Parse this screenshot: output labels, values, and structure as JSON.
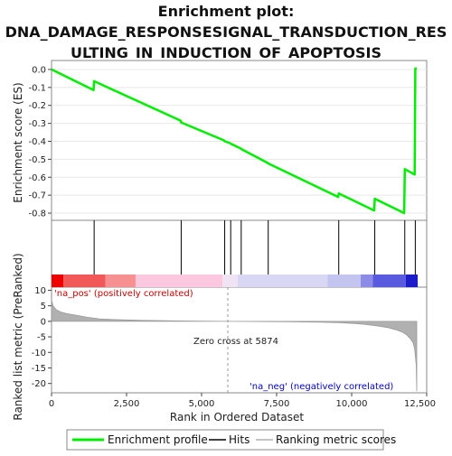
{
  "chart_data": {
    "type": "line",
    "title_lines": [
      "Enrichment plot:",
      "DNA_DAMAGE_RESPONSESIGNAL_TRANSDUCTION_RES",
      "ULTING_IN_INDUCTION_OF_APOPTOSIS"
    ],
    "top_panel": {
      "ylabel": "Enrichment score (ES)",
      "ylim": [
        -0.84,
        0.05
      ],
      "yticks": [
        0.0,
        -0.1,
        -0.2,
        -0.3,
        -0.4,
        -0.5,
        -0.6,
        -0.7,
        -0.8
      ],
      "ytick_labels": [
        "0.0",
        "-0.1",
        "-0.2",
        "-0.3",
        "-0.4",
        "-0.5",
        "-0.6",
        "-0.7",
        "-0.8"
      ],
      "line_color": "#00ee00",
      "series": [
        {
          "name": "Enrichment profile",
          "x": [
            0,
            1400,
            1420,
            4300,
            4320,
            5750,
            5770,
            5950,
            5970,
            6300,
            6320,
            7200,
            7220,
            9550,
            9570,
            10750,
            10770,
            11750,
            11770,
            12100,
            12120,
            12170
          ],
          "y": [
            0.0,
            -0.115,
            -0.065,
            -0.285,
            -0.295,
            -0.395,
            -0.4,
            -0.41,
            -0.413,
            -0.44,
            -0.443,
            -0.52,
            -0.523,
            -0.71,
            -0.69,
            -0.785,
            -0.72,
            -0.8,
            -0.555,
            -0.585,
            0.005,
            0.005
          ]
        }
      ]
    },
    "hits": {
      "color": "#000000",
      "x": [
        1420,
        4320,
        5770,
        5970,
        6320,
        7220,
        9570,
        10770,
        11770,
        12120
      ]
    },
    "heat_bar": {
      "segments": [
        {
          "x0": 0,
          "x1": 400,
          "color": "#ee0000"
        },
        {
          "x0": 400,
          "x1": 1800,
          "color": "#f25858"
        },
        {
          "x0": 1800,
          "x1": 2800,
          "color": "#f79090"
        },
        {
          "x0": 2800,
          "x1": 5700,
          "color": "#fbc8e0"
        },
        {
          "x0": 5700,
          "x1": 6200,
          "color": "#f0e4f4"
        },
        {
          "x0": 6200,
          "x1": 9200,
          "color": "#d8d8f4"
        },
        {
          "x0": 9200,
          "x1": 10300,
          "color": "#c4c4f0"
        },
        {
          "x0": 10300,
          "x1": 10700,
          "color": "#8c8ce8"
        },
        {
          "x0": 10700,
          "x1": 11800,
          "color": "#5a5ae0"
        },
        {
          "x0": 11800,
          "x1": 12200,
          "color": "#1c1cc8"
        }
      ]
    },
    "bottom_panel": {
      "ylabel": "Ranked list metric (PreRanked)",
      "ylim": [
        -23,
        11
      ],
      "yticks": [
        10,
        5,
        0,
        -5,
        -10,
        -15,
        -20
      ],
      "ytick_labels": [
        "10",
        "5",
        "0",
        "-5",
        "-10",
        "-15",
        "-20"
      ],
      "fill_color": "#b0b0b0",
      "series": [
        {
          "name": "Ranking metric scores",
          "x": [
            0,
            50,
            150,
            300,
            500,
            800,
            1200,
            1600,
            2000,
            3000,
            4000,
            5000,
            5874,
            7000,
            8000,
            9000,
            9600,
            10000,
            10400,
            10800,
            11200,
            11500,
            11700,
            11850,
            11950,
            12050,
            12100,
            12150,
            12170
          ],
          "y": [
            7.0,
            5.0,
            3.8,
            3.0,
            2.5,
            2.0,
            1.3,
            0.8,
            0.6,
            0.3,
            0.15,
            0.05,
            0.0,
            -0.08,
            -0.15,
            -0.3,
            -0.45,
            -0.65,
            -0.95,
            -1.4,
            -2.0,
            -2.8,
            -3.5,
            -4.5,
            -5.5,
            -7.0,
            -9.0,
            -14.0,
            -22.5
          ]
        }
      ],
      "zero_cross_label": "Zero cross at 5874",
      "zero_cross_x": 5874,
      "pos_label": "'na_pos' (positively correlated)",
      "pos_color": "#cc0000",
      "neg_label": "'na_neg' (negatively correlated)",
      "neg_color": "#0000cc"
    },
    "xaxis": {
      "label": "Rank in Ordered Dataset",
      "xlim": [
        0,
        12500
      ],
      "ticks": [
        0,
        2500,
        5000,
        7500,
        10000,
        12500
      ],
      "tick_labels": [
        "0",
        "2,500",
        "5,000",
        "7,500",
        "10,000",
        "12,500"
      ]
    },
    "legend": {
      "placement": "bottom",
      "items": [
        {
          "label": "Enrichment profile",
          "color": "#00ee00"
        },
        {
          "label": "Hits",
          "color": "#000000"
        },
        {
          "label": "Ranking metric scores",
          "color": "#b0b0b0"
        }
      ]
    }
  }
}
